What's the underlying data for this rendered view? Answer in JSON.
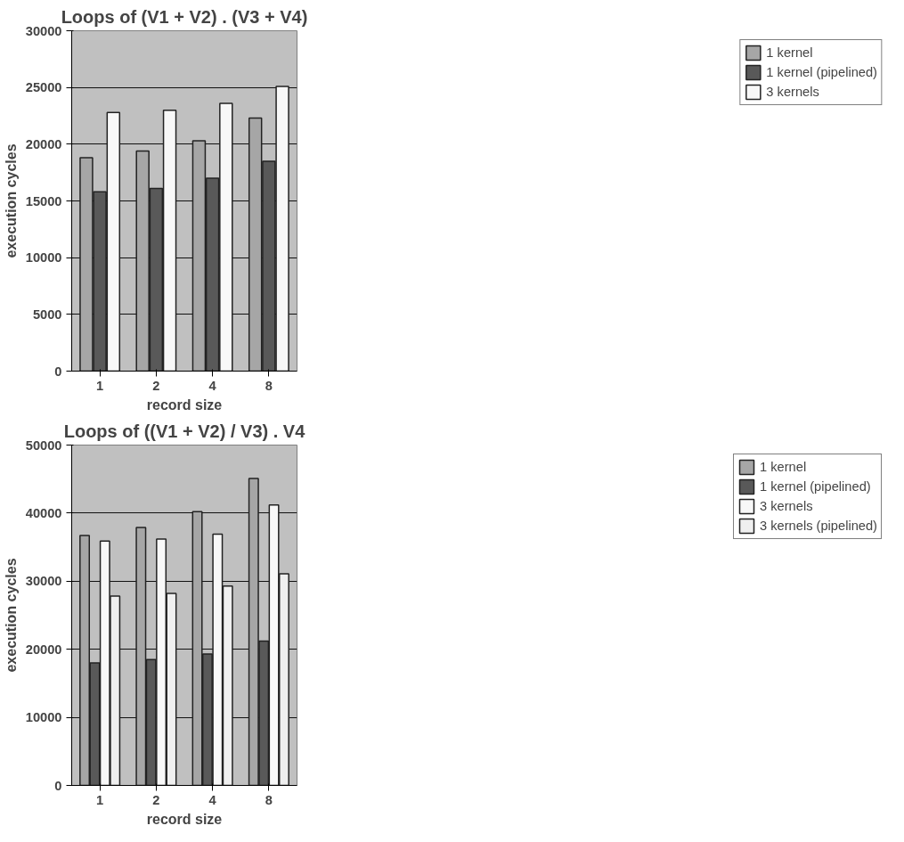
{
  "chart_data": [
    {
      "type": "bar",
      "title": "Loops of (V1 + V2) . (V3 + V4)",
      "xlabel": "record size",
      "ylabel": "execution cycles",
      "categories": [
        "1",
        "2",
        "4",
        "8"
      ],
      "series": [
        {
          "name": "1 kernel",
          "color": "#a6a6a6",
          "values": [
            18800,
            19400,
            20300,
            22300
          ]
        },
        {
          "name": "1 kernel (pipelined)",
          "color": "#595959",
          "values": [
            15800,
            16100,
            17000,
            18500
          ]
        },
        {
          "name": "3 kernels",
          "color": "#f8f8f8",
          "values": [
            22800,
            23000,
            23600,
            25100
          ]
        }
      ],
      "ylim": [
        0,
        30000
      ],
      "yticks": [
        0,
        5000,
        10000,
        15000,
        20000,
        25000,
        30000
      ],
      "grid": "y",
      "legend": "right"
    },
    {
      "type": "bar",
      "title": "Loops of ((V1 + V2) / V3) . V4",
      "xlabel": "record size",
      "ylabel": "execution cycles",
      "categories": [
        "1",
        "2",
        "4",
        "8"
      ],
      "series": [
        {
          "name": "1 kernel",
          "color": "#a6a6a6",
          "values": [
            36700,
            37900,
            40200,
            45100
          ]
        },
        {
          "name": "1 kernel (pipelined)",
          "color": "#595959",
          "values": [
            18000,
            18500,
            19300,
            21200
          ]
        },
        {
          "name": "3 kernels",
          "color": "#f8f8f8",
          "values": [
            35900,
            36200,
            36900,
            41200
          ]
        },
        {
          "name": "3 kernels (pipelined)",
          "color": "#efefef",
          "values": [
            27800,
            28200,
            29300,
            31100
          ]
        }
      ],
      "ylim": [
        0,
        50000
      ],
      "yticks": [
        0,
        10000,
        20000,
        30000,
        40000,
        50000
      ],
      "grid": "y",
      "legend": "right"
    }
  ]
}
